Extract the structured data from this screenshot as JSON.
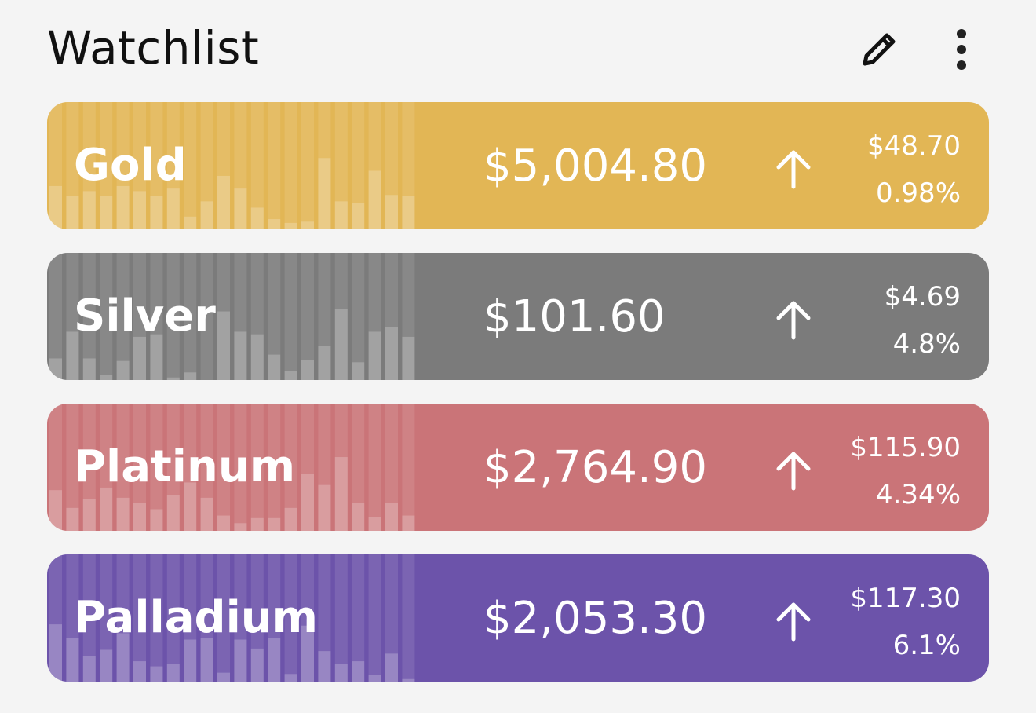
{
  "header": {
    "title": "Watchlist",
    "edit_icon": "pencil-icon",
    "more_icon": "more-vertical-icon"
  },
  "cards": [
    {
      "name": "Gold",
      "price": "$5,004.80",
      "change": "$48.70",
      "percent": "0.98%",
      "trend_icon": "arrow-up-icon",
      "color": "#e2b655",
      "bars": [
        0.34,
        0.26,
        0.3,
        0.26,
        0.34,
        0.3,
        0.26,
        0.32,
        0.1,
        0.22,
        0.42,
        0.32,
        0.17,
        0.08,
        0.05,
        0.06,
        0.56,
        0.22,
        0.21,
        0.46,
        0.27,
        0.26
      ]
    },
    {
      "name": "Silver",
      "price": "$101.60",
      "change": "$4.69",
      "percent": "4.8%",
      "trend_icon": "arrow-up-icon",
      "color": "#7b7b7b",
      "bars": [
        0.17,
        0.38,
        0.17,
        0.04,
        0.15,
        0.34,
        0.36,
        0.02,
        0.06,
        0.0,
        0.54,
        0.38,
        0.36,
        0.2,
        0.07,
        0.16,
        0.27,
        0.56,
        0.14,
        0.38,
        0.42,
        0.34
      ]
    },
    {
      "name": "Platinum",
      "price": "$2,764.90",
      "change": "$115.90",
      "percent": "4.34%",
      "trend_icon": "arrow-up-icon",
      "color": "#ca7478",
      "bars": [
        0.32,
        0.18,
        0.25,
        0.34,
        0.26,
        0.22,
        0.17,
        0.28,
        0.38,
        0.26,
        0.12,
        0.06,
        0.1,
        0.1,
        0.18,
        0.45,
        0.36,
        0.58,
        0.22,
        0.11,
        0.22,
        0.12
      ]
    },
    {
      "name": "Palladium",
      "price": "$2,053.30",
      "change": "$117.30",
      "percent": "6.1%",
      "trend_icon": "arrow-up-icon",
      "color": "#6c53aa",
      "bars": [
        0.45,
        0.34,
        0.2,
        0.25,
        0.38,
        0.16,
        0.12,
        0.14,
        0.33,
        0.34,
        0.07,
        0.33,
        0.26,
        0.34,
        0.06,
        0.44,
        0.24,
        0.14,
        0.16,
        0.05,
        0.22,
        0.02
      ]
    }
  ]
}
